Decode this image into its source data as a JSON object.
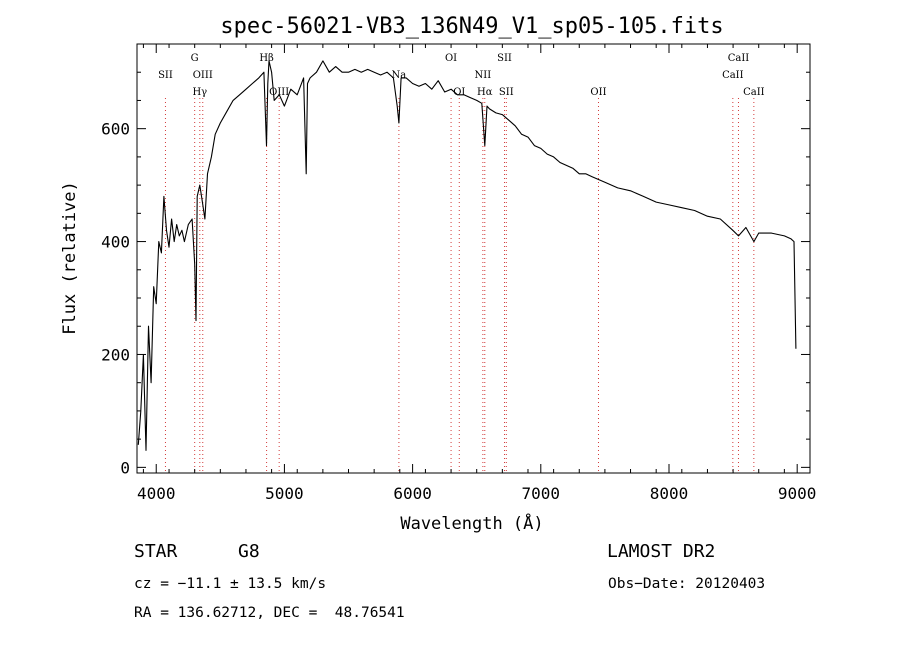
{
  "chart_data": {
    "type": "line",
    "title": "spec-56021-VB3_136N49_V1_sp05-105.fits",
    "xlabel": "Wavelength (Å)",
    "ylabel": "Flux (relative)",
    "xlim": [
      3850,
      9100
    ],
    "ylim": [
      -10,
      750
    ],
    "xticks": [
      4000,
      5000,
      6000,
      7000,
      8000,
      9000
    ],
    "yticks": [
      0,
      200,
      400,
      600
    ],
    "series": [
      {
        "x": [
          3860,
          3880,
          3900,
          3920,
          3940,
          3960,
          3980,
          4000,
          4020,
          4040,
          4060,
          4080,
          4100,
          4120,
          4140,
          4160,
          4180,
          4200,
          4220,
          4250,
          4280,
          4300,
          4310,
          4320,
          4340,
          4360,
          4380,
          4400,
          4430,
          4460,
          4500,
          4550,
          4600,
          4650,
          4700,
          4750,
          4800,
          4840,
          4860,
          4870,
          4880,
          4900,
          4920,
          4960,
          5000,
          5050,
          5100,
          5150,
          5170,
          5180,
          5200,
          5250,
          5300,
          5350,
          5400,
          5450,
          5500,
          5550,
          5600,
          5650,
          5700,
          5750,
          5800,
          5850,
          5880,
          5893,
          5910,
          5950,
          6000,
          6050,
          6100,
          6150,
          6200,
          6250,
          6300,
          6350,
          6400,
          6450,
          6500,
          6540,
          6563,
          6580,
          6600,
          6650,
          6700,
          6750,
          6800,
          6850,
          6900,
          6950,
          7000,
          7050,
          7100,
          7150,
          7200,
          7250,
          7300,
          7350,
          7400,
          7450,
          7500,
          7600,
          7700,
          7800,
          7900,
          8000,
          8100,
          8200,
          8300,
          8400,
          8498,
          8542,
          8600,
          8662,
          8700,
          8800,
          8900,
          8950,
          8975,
          8990
        ],
        "y": [
          40,
          100,
          200,
          30,
          250,
          150,
          320,
          290,
          400,
          380,
          480,
          420,
          390,
          440,
          400,
          430,
          410,
          420,
          400,
          430,
          440,
          360,
          260,
          480,
          500,
          470,
          440,
          520,
          550,
          590,
          610,
          630,
          650,
          660,
          670,
          680,
          690,
          700,
          570,
          680,
          720,
          700,
          650,
          660,
          640,
          670,
          660,
          690,
          520,
          680,
          690,
          700,
          720,
          700,
          710,
          700,
          700,
          705,
          700,
          705,
          700,
          695,
          700,
          690,
          640,
          610,
          690,
          690,
          680,
          675,
          680,
          670,
          685,
          665,
          670,
          660,
          660,
          655,
          650,
          645,
          570,
          640,
          635,
          628,
          625,
          615,
          605,
          590,
          585,
          570,
          565,
          555,
          550,
          540,
          535,
          530,
          520,
          520,
          515,
          510,
          505,
          495,
          490,
          480,
          470,
          465,
          460,
          455,
          445,
          440,
          420,
          410,
          425,
          400,
          415,
          415,
          410,
          405,
          400,
          210
        ]
      }
    ],
    "line_markers": [
      {
        "wavelength": 4072,
        "label": "SII",
        "row": "low"
      },
      {
        "wavelength": 4300,
        "label": "G",
        "row": "top"
      },
      {
        "wavelength": 4340,
        "label": "Hγ",
        "row": "low2"
      },
      {
        "wavelength": 4363,
        "label": "OIII",
        "row": "mid"
      },
      {
        "wavelength": 4861,
        "label": "Hβ",
        "row": "top"
      },
      {
        "wavelength": 4959,
        "label": "OIII",
        "row": "low2"
      },
      {
        "wavelength": 5893,
        "label": "Na",
        "row": "mid"
      },
      {
        "wavelength": 6300,
        "label": "OI",
        "row": "top"
      },
      {
        "wavelength": 6364,
        "label": "OI",
        "row": "low2"
      },
      {
        "wavelength": 6548,
        "label": "NII",
        "row": "mid"
      },
      {
        "wavelength": 6563,
        "label": "Hα",
        "row": "low2"
      },
      {
        "wavelength": 6717,
        "label": "SII",
        "row": "top"
      },
      {
        "wavelength": 6731,
        "label": "SII",
        "row": "low2"
      },
      {
        "wavelength": 7450,
        "label": "OII",
        "row": "low2"
      },
      {
        "wavelength": 8498,
        "label": "CaII",
        "row": "mid"
      },
      {
        "wavelength": 8542,
        "label": "CaII",
        "row": "top"
      },
      {
        "wavelength": 8662,
        "label": "CaII",
        "row": "low2"
      }
    ],
    "grid": false
  },
  "footer": {
    "object_class": "STAR",
    "subclass": "G8",
    "survey": "LAMOST DR2",
    "redshift_text": "cz = −11.1 ± 13.5 km/s",
    "obs_date_text": "Obs−Date: 20120403",
    "coords_text": "RA = 136.62712, DEC =  48.76541"
  }
}
